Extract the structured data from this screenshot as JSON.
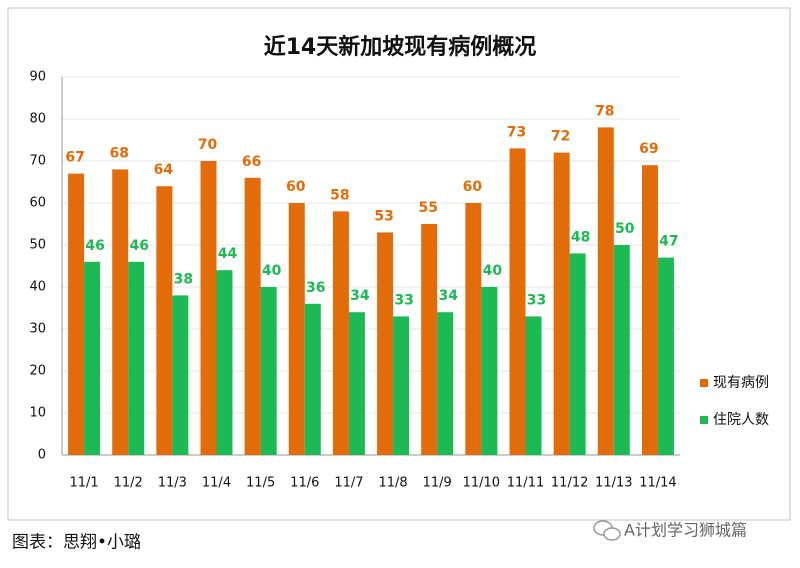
{
  "chart_data": {
    "type": "bar",
    "title": "近14天新加坡现有病例概况",
    "categories": [
      "11/1",
      "11/2",
      "11/3",
      "11/4",
      "11/5",
      "11/6",
      "11/7",
      "11/8",
      "11/9",
      "11/10",
      "11/11",
      "11/12",
      "11/13",
      "11/14"
    ],
    "series": [
      {
        "name": "现有病例",
        "color": "#e36c0a",
        "values": [
          67,
          68,
          64,
          70,
          66,
          60,
          58,
          53,
          55,
          60,
          73,
          72,
          78,
          69
        ]
      },
      {
        "name": "住院人数",
        "color": "#1db954",
        "values": [
          46,
          46,
          38,
          44,
          40,
          36,
          34,
          33,
          34,
          40,
          33,
          48,
          50,
          47
        ]
      }
    ],
    "ylim": [
      0,
      90
    ],
    "yticks": [
      0,
      10,
      20,
      30,
      40,
      50,
      60,
      70,
      80,
      90
    ],
    "grid": true,
    "legend": "right"
  },
  "caption": "图表：思翔•小璐",
  "watermark": "A计划学习狮城篇"
}
